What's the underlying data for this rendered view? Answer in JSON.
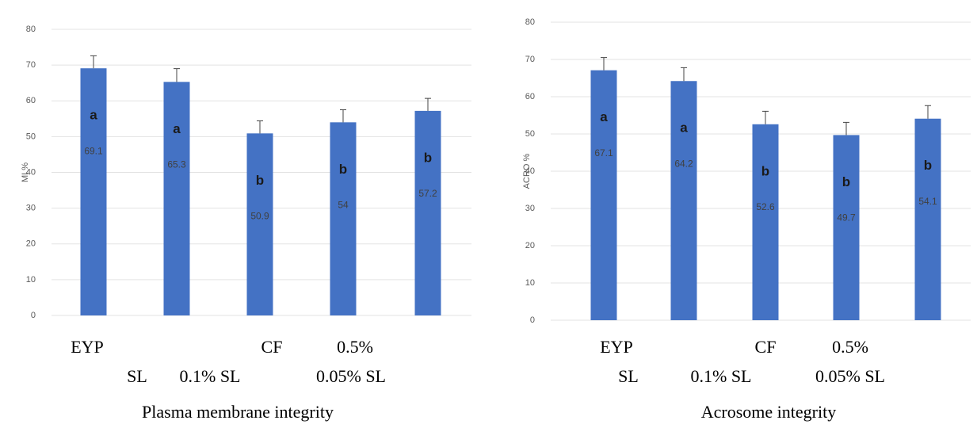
{
  "chart_data": [
    {
      "type": "bar",
      "title": "Plasma membrane integrity",
      "y_label": "MI %",
      "categories": [
        null,
        null,
        null,
        null,
        null
      ],
      "values": [
        69.1,
        65.3,
        50.9,
        54,
        57.2
      ],
      "errors": [
        3.5,
        3.7,
        3.5,
        3.5,
        3.5
      ],
      "letters": [
        "a",
        "a",
        "b",
        "b",
        "b"
      ],
      "x_label_rows": [
        [
          "EYP",
          "CF",
          "0.5%"
        ],
        [
          "SL",
          "0.1% SL",
          "0.05% SL"
        ]
      ],
      "color": "#4472c4",
      "ylim": [
        0,
        80
      ],
      "yticks": [
        0,
        10,
        20,
        30,
        40,
        50,
        60,
        70,
        80
      ],
      "grid": true
    },
    {
      "type": "bar",
      "title": "Acrosome integrity",
      "y_label": "ACRO %",
      "categories": [
        null,
        null,
        null,
        null,
        null
      ],
      "values": [
        67.1,
        64.2,
        52.6,
        49.7,
        54.1
      ],
      "errors": [
        3.4,
        3.6,
        3.5,
        3.4,
        3.5
      ],
      "letters": [
        "a",
        "a",
        "b",
        "b",
        "b"
      ],
      "x_label_rows": [
        [
          "EYP",
          "CF",
          "0.5%"
        ],
        [
          "SL",
          "0.1% SL",
          "0.05% SL"
        ]
      ],
      "color": "#4472c4",
      "ylim": [
        0,
        80
      ],
      "yticks": [
        0,
        10,
        20,
        30,
        40,
        50,
        60,
        70,
        80
      ],
      "grid": true
    }
  ]
}
